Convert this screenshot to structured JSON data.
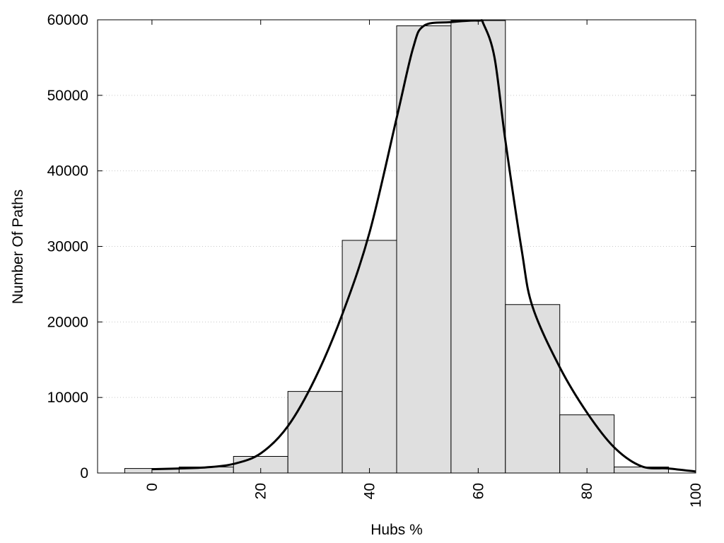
{
  "chart_data": {
    "type": "bar",
    "title": "",
    "xlabel": "Hubs %",
    "ylabel": "Number Of Paths",
    "xlim": [
      -10,
      100
    ],
    "ylim": [
      0,
      60000
    ],
    "x_ticks": [
      0,
      20,
      40,
      60,
      80,
      100
    ],
    "y_ticks": [
      0,
      10000,
      20000,
      30000,
      40000,
      50000,
      60000
    ],
    "grid": "horizontal-dotted",
    "bin_width": 10,
    "bars": [
      {
        "x": 0,
        "value": 600
      },
      {
        "x": 10,
        "value": 800
      },
      {
        "x": 20,
        "value": 2200
      },
      {
        "x": 30,
        "value": 10800
      },
      {
        "x": 40,
        "value": 30800
      },
      {
        "x": 50,
        "value": 59200
      },
      {
        "x": 60,
        "value": 59900
      },
      {
        "x": 70,
        "value": 22300
      },
      {
        "x": 80,
        "value": 7700
      },
      {
        "x": 90,
        "value": 800
      }
    ],
    "curve": {
      "type": "line",
      "x": [
        0,
        5,
        10,
        15,
        20,
        25,
        30,
        35,
        40,
        45,
        48,
        50,
        55,
        60,
        61,
        63,
        65,
        68,
        70,
        75,
        80,
        85,
        90,
        95,
        100
      ],
      "y": [
        500,
        600,
        750,
        1200,
        2600,
        6200,
        12500,
        21000,
        31800,
        47000,
        56200,
        59200,
        59700,
        59900,
        59400,
        55000,
        44000,
        29500,
        22000,
        14000,
        8000,
        3400,
        900,
        600,
        200
      ]
    },
    "colors": {
      "bar_fill": "#dfdfdf",
      "bar_stroke": "#000000",
      "curve": "#000000",
      "grid": "#c8c8c8"
    }
  }
}
